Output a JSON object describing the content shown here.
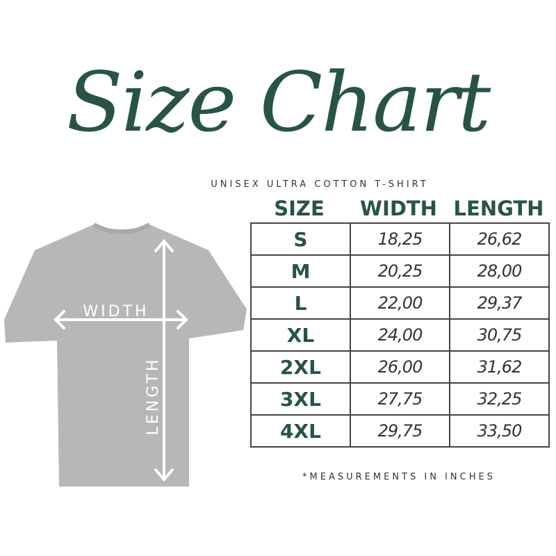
{
  "title": "Size Chart",
  "subtitle": "UNISEX ULTRA COTTON T-SHIRT",
  "diagram": {
    "width_label": "WIDTH",
    "length_label": "LENGTH",
    "shirt_color": "#b7b7b7",
    "arrow_color": "#ffffff"
  },
  "table": {
    "headers": [
      "SIZE",
      "WIDTH",
      "LENGTH"
    ],
    "rows": [
      [
        "S",
        "18,25",
        "26,62"
      ],
      [
        "M",
        "20,25",
        "28,00"
      ],
      [
        "L",
        "22,00",
        "29,37"
      ],
      [
        "XL",
        "24,00",
        "30,75"
      ],
      [
        "2XL",
        "26,00",
        "31,62"
      ],
      [
        "3XL",
        "27,75",
        "32,25"
      ],
      [
        "4XL",
        "29,75",
        "33,50"
      ]
    ]
  },
  "note": "*MEASUREMENTS IN INCHES",
  "colors": {
    "accent": "#285444",
    "text": "#333333"
  }
}
